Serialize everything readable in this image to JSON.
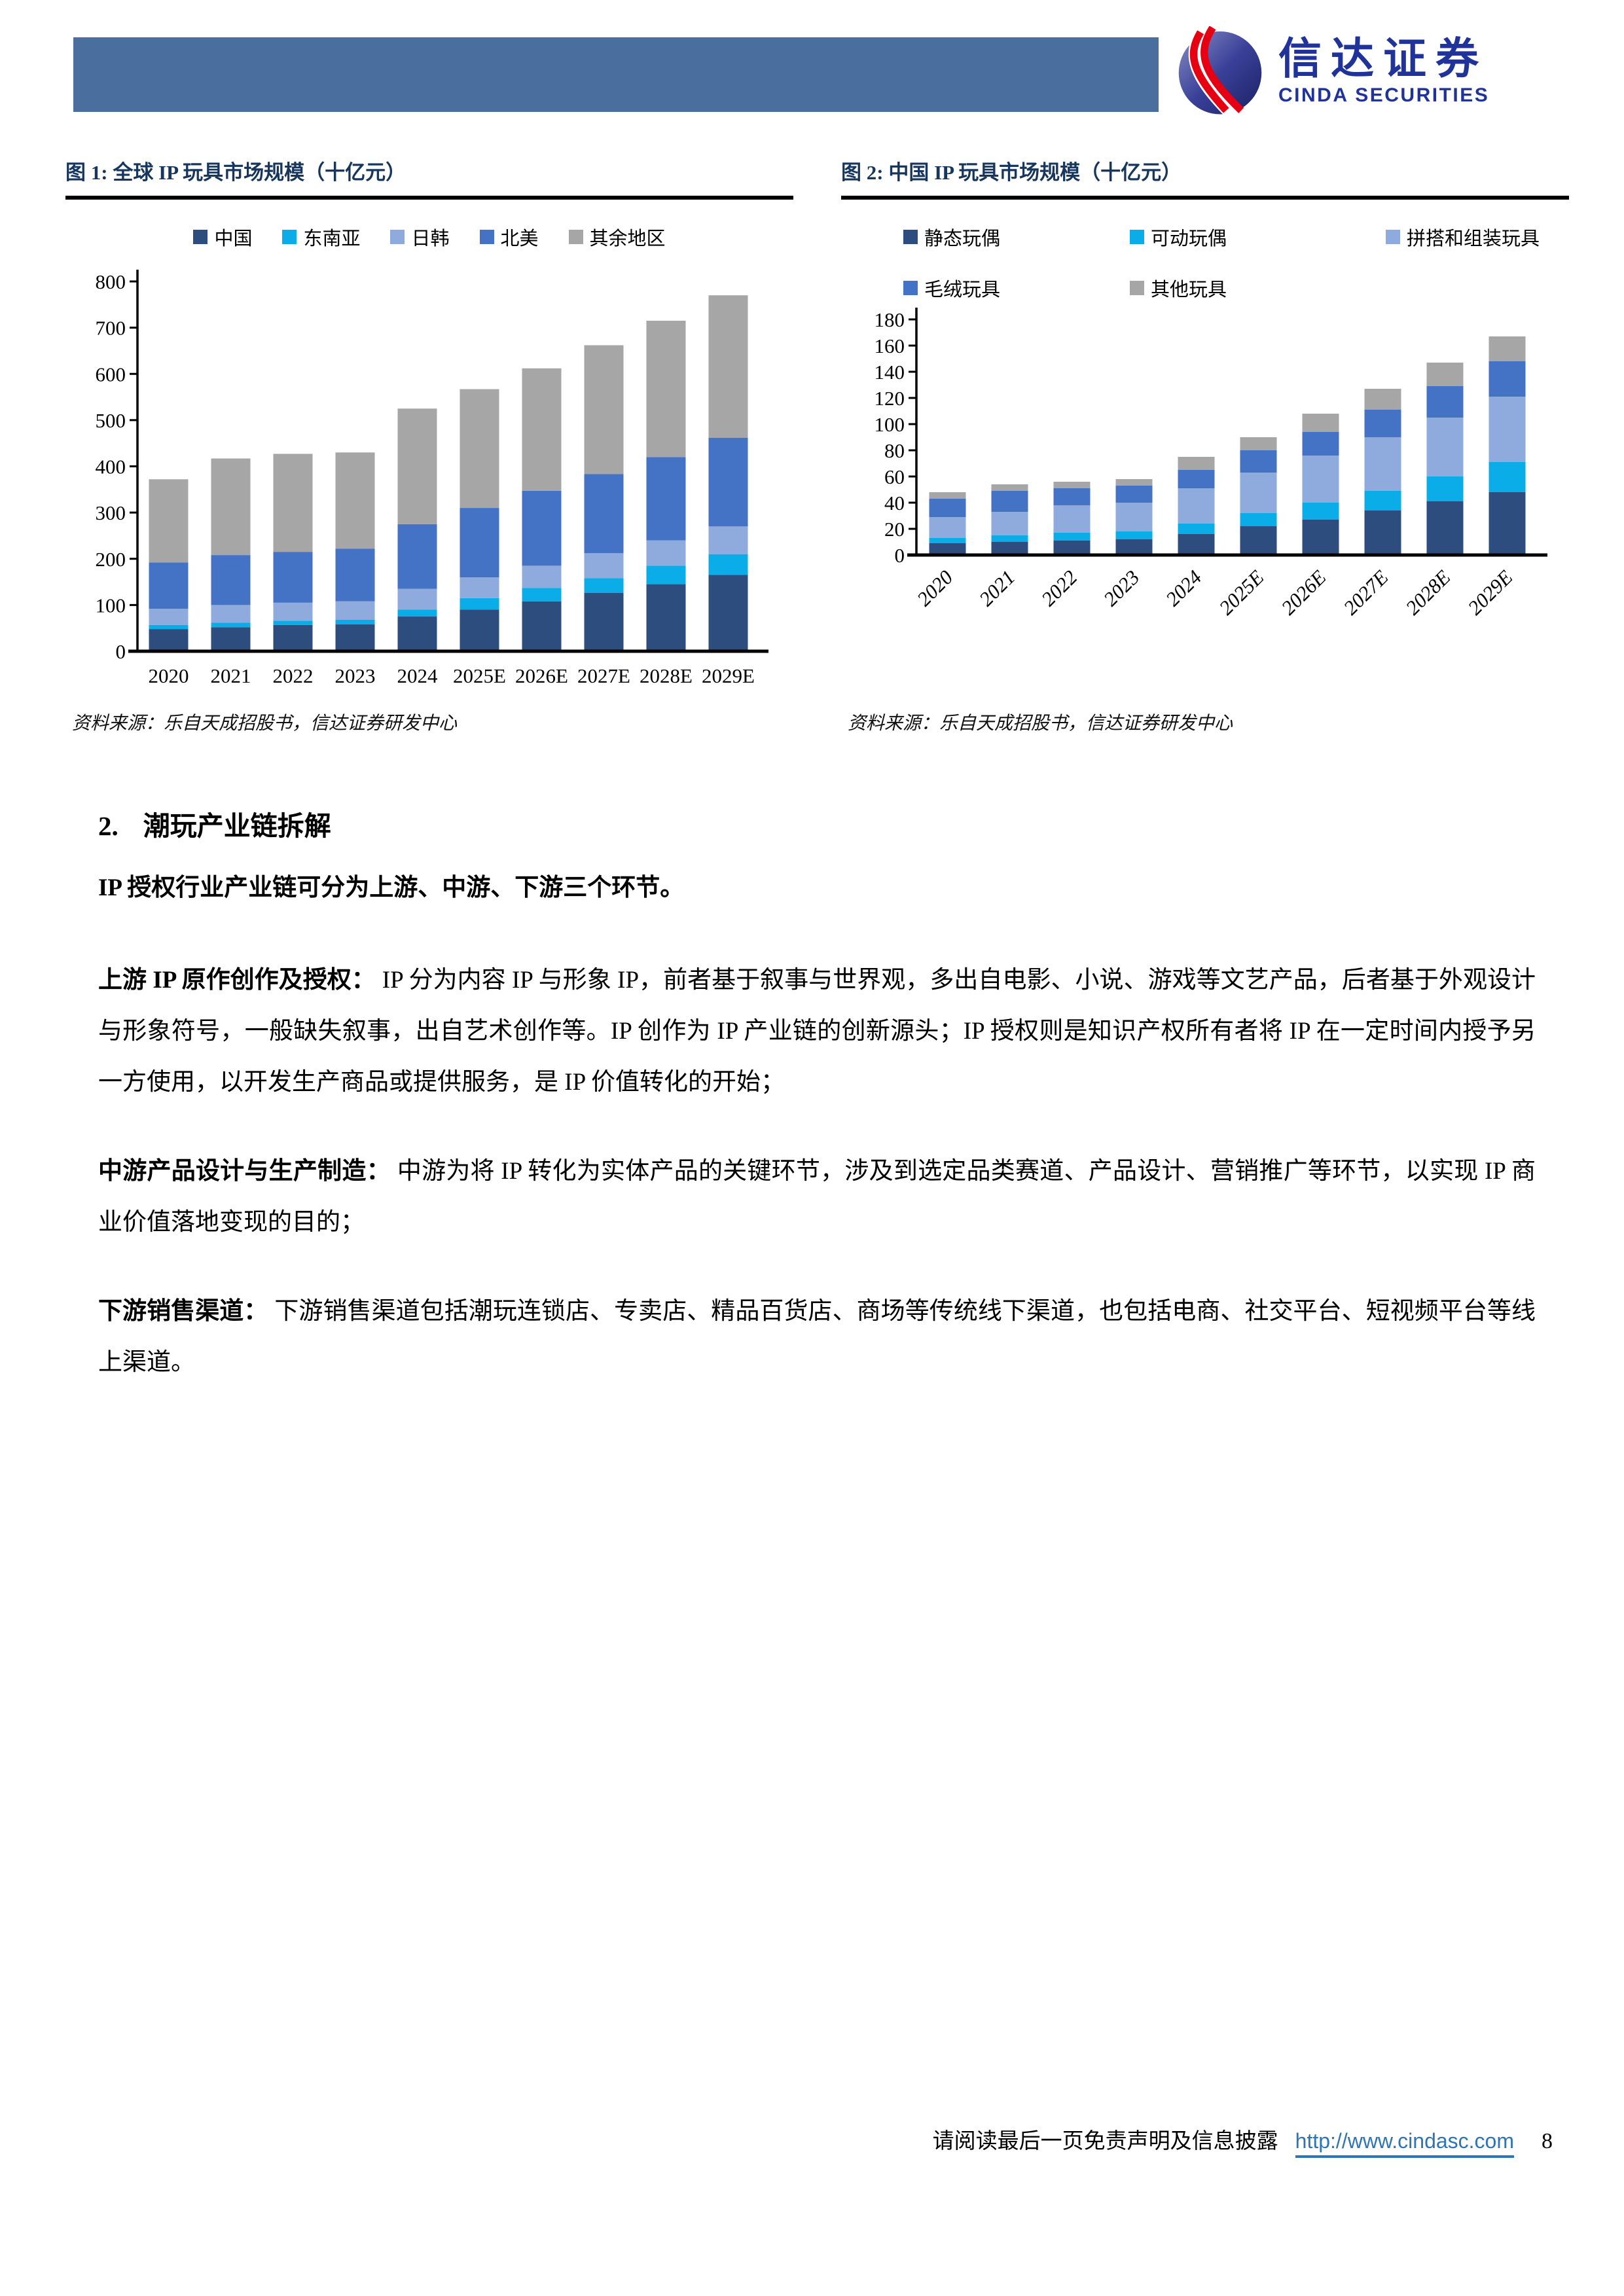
{
  "header": {
    "bar_color": "#4A6F9E",
    "logo_cn": "信达证券",
    "logo_en": "CINDA SECURITIES",
    "brand_blue": "#20339A",
    "brand_red": "#E60012"
  },
  "figure1": {
    "title": "图 1:  全球 IP 玩具市场规模（十亿元）",
    "source": "资料来源：乐自天成招股书，信达证券研发中心"
  },
  "figure2": {
    "title": "图 2:  中国 IP 玩具市场规模（十亿元）",
    "source": "资料来源：乐自天成招股书，信达证券研发中心"
  },
  "chart_data": [
    {
      "type": "bar",
      "stacked": true,
      "title": "全球IP玩具市场规模（十亿元）",
      "categories": [
        "2020",
        "2021",
        "2022",
        "2023",
        "2024",
        "2025E",
        "2026E",
        "2027E",
        "2028E",
        "2029E"
      ],
      "series": [
        {
          "name": "中国",
          "color": "#2E4D7F",
          "values": [
            48,
            52,
            57,
            58,
            75,
            90,
            108,
            126,
            145,
            165
          ]
        },
        {
          "name": "东南亚",
          "color": "#0BADE8",
          "values": [
            9,
            10,
            9,
            10,
            15,
            25,
            29,
            32,
            40,
            45
          ]
        },
        {
          "name": "日韩",
          "color": "#8FAADC",
          "values": [
            35,
            38,
            39,
            40,
            45,
            45,
            48,
            54,
            55,
            60
          ]
        },
        {
          "name": "北美",
          "color": "#4472C4",
          "values": [
            100,
            108,
            110,
            114,
            140,
            150,
            162,
            171,
            180,
            192
          ]
        },
        {
          "name": "其余地区",
          "color": "#A6A6A6",
          "values": [
            180,
            209,
            212,
            208,
            250,
            257,
            265,
            279,
            295,
            308
          ]
        }
      ],
      "ylim": [
        0,
        800
      ],
      "ytick_step": 100,
      "legend_position": "top",
      "grid": false,
      "xtick_rotation": 0
    },
    {
      "type": "bar",
      "stacked": true,
      "title": "中国IP玩具市场规模（十亿元）",
      "categories": [
        "2020",
        "2021",
        "2022",
        "2023",
        "2024",
        "2025E",
        "2026E",
        "2027E",
        "2028E",
        "2029E"
      ],
      "series": [
        {
          "name": "静态玩偶",
          "color": "#2E4D7F",
          "values": [
            9,
            10,
            11,
            12,
            16,
            22,
            27,
            34,
            41,
            48
          ]
        },
        {
          "name": "可动玩偶",
          "color": "#0BADE8",
          "values": [
            4,
            5,
            6,
            6,
            8,
            10,
            13,
            15,
            19,
            23
          ]
        },
        {
          "name": "拼搭和组装玩具",
          "color": "#8FAADC",
          "values": [
            16,
            18,
            21,
            22,
            27,
            31,
            36,
            41,
            45,
            50
          ]
        },
        {
          "name": "毛绒玩具",
          "color": "#4472C4",
          "values": [
            14,
            16,
            13,
            13,
            14,
            17,
            18,
            21,
            24,
            27
          ]
        },
        {
          "name": "其他玩具",
          "color": "#A6A6A6",
          "values": [
            5,
            5,
            5,
            5,
            10,
            10,
            14,
            16,
            18,
            19
          ]
        }
      ],
      "ylim": [
        0,
        180
      ],
      "ytick_step": 20,
      "legend_position": "top",
      "grid": false,
      "xtick_rotation": -45
    }
  ],
  "section": {
    "number": "2.",
    "heading": "潮玩产业链拆解",
    "intro": "IP 授权行业产业链可分为上游、中游、下游三个环节。",
    "paragraphs": [
      {
        "lead": "上游 IP 原作创作及授权：",
        "text": "IP 分为内容 IP 与形象 IP，前者基于叙事与世界观，多出自电影、小说、游戏等文艺产品，后者基于外观设计与形象符号，一般缺失叙事，出自艺术创作等。IP 创作为 IP 产业链的创新源头；IP 授权则是知识产权所有者将 IP 在一定时间内授予另一方使用，以开发生产商品或提供服务，是 IP 价值转化的开始；"
      },
      {
        "lead": "中游产品设计与生产制造：",
        "text": "中游为将 IP 转化为实体产品的关键环节，涉及到选定品类赛道、产品设计、营销推广等环节，以实现 IP 商业价值落地变现的目的；"
      },
      {
        "lead": "下游销售渠道：",
        "text": "下游销售渠道包括潮玩连锁店、专卖店、精品百货店、商场等传统线下渠道，也包括电商、社交平台、短视频平台等线上渠道。"
      }
    ]
  },
  "footer": {
    "disclaimer": "请阅读最后一页免责声明及信息披露",
    "url": "http://www.cindasc.com",
    "page": "8",
    "url_color": "#2E75B6"
  }
}
